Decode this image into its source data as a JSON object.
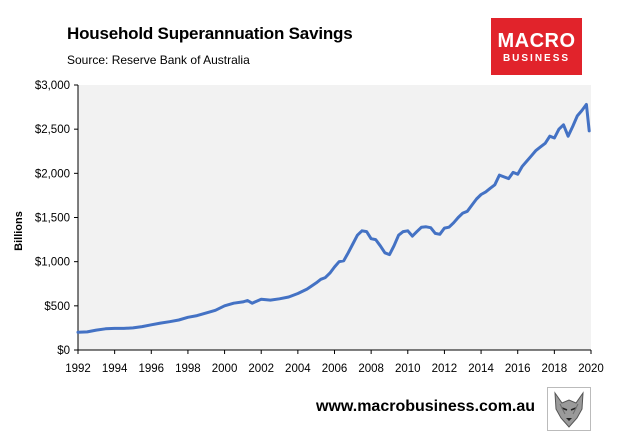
{
  "header": {
    "title": "Household Superannuation Savings",
    "source": "Source: Reserve Bank of Australia"
  },
  "logo": {
    "line1": "MACRO",
    "line2": "BUSINESS"
  },
  "footer": {
    "site": "www.macrobusiness.com.au"
  },
  "colors": {
    "line": "#4472c4",
    "plot_bg": "#f2f2f2",
    "brand_red": "#e1232b"
  },
  "chart_data": {
    "type": "line",
    "title": "Household Superannuation Savings",
    "xlabel": "",
    "ylabel": "Billions",
    "xlim": [
      1992,
      2020
    ],
    "ylim": [
      0,
      3000
    ],
    "x_ticks": [
      1992,
      1994,
      1996,
      1998,
      2000,
      2002,
      2004,
      2006,
      2008,
      2010,
      2012,
      2014,
      2016,
      2018,
      2020
    ],
    "y_ticks": [
      {
        "value": 0,
        "label": "$0"
      },
      {
        "value": 500,
        "label": "$500"
      },
      {
        "value": 1000,
        "label": "$1,000"
      },
      {
        "value": 1500,
        "label": "$1,500"
      },
      {
        "value": 2000,
        "label": "$2,000"
      },
      {
        "value": 2500,
        "label": "$2,500"
      },
      {
        "value": 3000,
        "label": "$3,000"
      }
    ],
    "grid": false,
    "series": [
      {
        "name": "Household Superannuation Savings",
        "x": [
          1992.0,
          1992.5,
          1993.0,
          1993.5,
          1994.0,
          1994.5,
          1995.0,
          1995.5,
          1996.0,
          1996.5,
          1997.0,
          1997.5,
          1998.0,
          1998.5,
          1999.0,
          1999.5,
          2000.0,
          2000.5,
          2001.0,
          2001.25,
          2001.5,
          2002.0,
          2002.5,
          2003.0,
          2003.5,
          2004.0,
          2004.5,
          2005.0,
          2005.25,
          2005.5,
          2005.75,
          2006.0,
          2006.25,
          2006.5,
          2006.75,
          2007.0,
          2007.25,
          2007.5,
          2007.75,
          2008.0,
          2008.25,
          2008.5,
          2008.75,
          2009.0,
          2009.25,
          2009.5,
          2009.75,
          2010.0,
          2010.25,
          2010.5,
          2010.75,
          2011.0,
          2011.25,
          2011.5,
          2011.75,
          2012.0,
          2012.25,
          2012.5,
          2012.75,
          2013.0,
          2013.25,
          2013.5,
          2013.75,
          2014.0,
          2014.25,
          2014.5,
          2014.75,
          2015.0,
          2015.25,
          2015.5,
          2015.75,
          2016.0,
          2016.25,
          2016.5,
          2016.75,
          2017.0,
          2017.25,
          2017.5,
          2017.75,
          2018.0,
          2018.25,
          2018.5,
          2018.75,
          2019.0,
          2019.25,
          2019.5,
          2019.75,
          2019.9
        ],
        "values": [
          200,
          205,
          225,
          240,
          245,
          245,
          250,
          265,
          285,
          305,
          320,
          340,
          370,
          390,
          420,
          450,
          500,
          530,
          545,
          560,
          530,
          575,
          565,
          580,
          600,
          640,
          690,
          760,
          800,
          820,
          870,
          940,
          1000,
          1010,
          1100,
          1200,
          1300,
          1350,
          1340,
          1260,
          1250,
          1180,
          1100,
          1080,
          1180,
          1300,
          1340,
          1350,
          1290,
          1340,
          1390,
          1395,
          1385,
          1320,
          1310,
          1380,
          1390,
          1440,
          1500,
          1550,
          1570,
          1640,
          1710,
          1760,
          1790,
          1830,
          1870,
          1980,
          1960,
          1940,
          2010,
          1990,
          2080,
          2140,
          2200,
          2260,
          2300,
          2340,
          2420,
          2400,
          2500,
          2550,
          2420,
          2530,
          2650,
          2710,
          2780,
          2480
        ]
      }
    ]
  }
}
